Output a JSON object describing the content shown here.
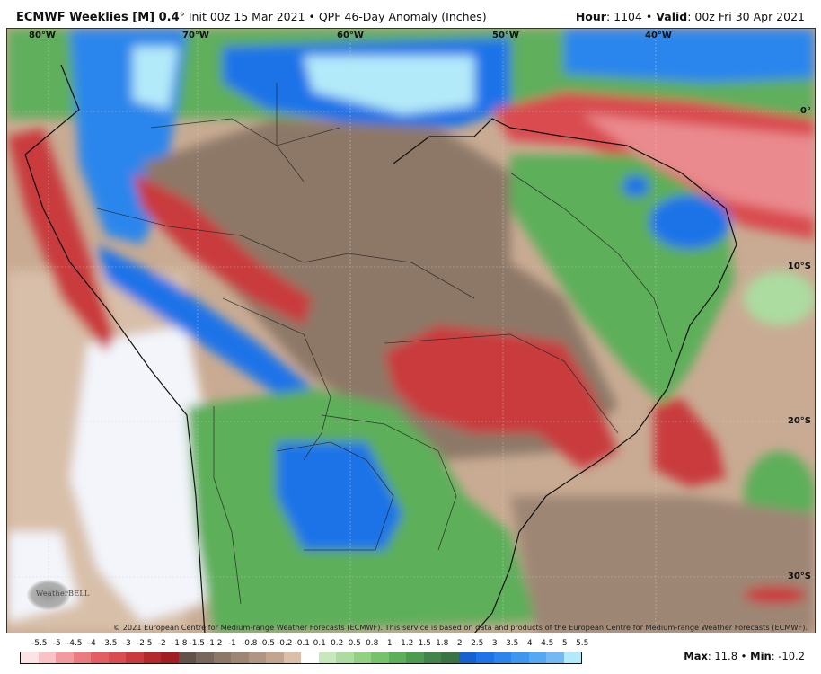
{
  "header": {
    "model": "ECMWF Weeklies [M] 0.4",
    "degree": "°",
    "init": " Init 00z 15 Mar 2021",
    "sep1": " • ",
    "product": "QPF 46-Day Anomaly (Inches)",
    "hour_label": "Hour",
    "hour_value": ": 1104",
    "sep2": " • ",
    "valid_label": "Valid",
    "valid_value": ": 00z Fri 30 Apr 2021"
  },
  "map": {
    "longitude_labels": [
      "80°W",
      "70°W",
      "60°W",
      "50°W",
      "40°W"
    ],
    "latitude_labels": [
      "0°",
      "10°S",
      "20°S",
      "30°S"
    ],
    "copyright": "© 2021 European Centre for Medium-range Weather Forecasts (ECMWF). This service is based on data and products of the European Centre for Medium-range Weather Forecasts (ECMWF).",
    "logo_text": "WeatherBELL"
  },
  "legend": {
    "ticks": [
      "-5.5",
      "-5",
      "-4.5",
      "-4",
      "-3.5",
      "-3",
      "-2.5",
      "-2",
      "-1.8",
      "-1.5",
      "-1.2",
      "-1",
      "-0.8",
      "-0.5",
      "-0.2",
      "-0.1",
      "0.1",
      "0.2",
      "0.5",
      "0.8",
      "1",
      "1.2",
      "1.5",
      "1.8",
      "2",
      "2.5",
      "3",
      "3.5",
      "4",
      "4.5",
      "5",
      "5.5"
    ],
    "colors": [
      "#fde3e6",
      "#f9c2c6",
      "#f29a9f",
      "#ea7c80",
      "#e25e62",
      "#d94c50",
      "#c93a3c",
      "#b42a2b",
      "#a11f21",
      "#625248",
      "#7a675b",
      "#8d7868",
      "#9e8675",
      "#b19583",
      "#c2a48f",
      "#dcbfa8",
      "#ffffff",
      "#c7e8bc",
      "#acdca0",
      "#92d084",
      "#76c26a",
      "#5daf5a",
      "#4d9b4f",
      "#42844a",
      "#3c7345",
      "#1561cf",
      "#1e73e8",
      "#2a86ec",
      "#3d97ef",
      "#55a8f2",
      "#75b9f4",
      "#b3eaf9"
    ],
    "max_label": "Max",
    "max_value": ": 11.8",
    "sep": " • ",
    "min_label": "Min",
    "min_value": ": -10.2"
  }
}
